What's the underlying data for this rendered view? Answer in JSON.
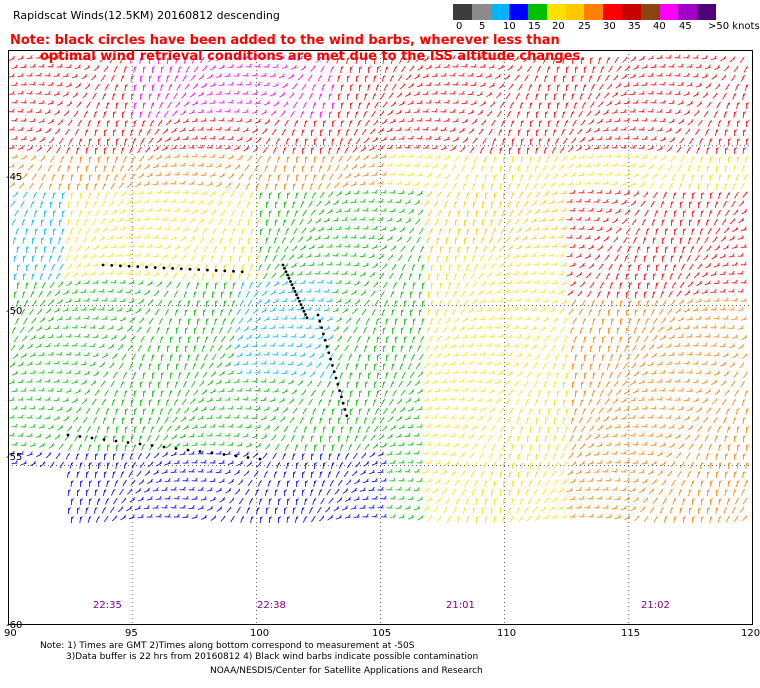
{
  "title": "Rapidscat Winds(12.5KM) 20160812 descending",
  "note": {
    "line1": "Note: black circles have been added to the wind barbs, wherever less than",
    "line2": "optimal wind retrieval conditions are met due to the ISS altitude changes."
  },
  "legend": {
    "labels": [
      "0",
      "5",
      "10",
      "15",
      "20",
      "25",
      "30",
      "35",
      "40",
      "45",
      ">50 knots"
    ],
    "colors": [
      "#3c3c3c",
      "#8a8a8a",
      "#00b4ff",
      "#0000ff",
      "#00c000",
      "#ffe000",
      "#ffc800",
      "#ff8000",
      "#ff0000",
      "#c80000",
      "#8b4513",
      "#ff00ff",
      "#a000c8",
      "#500078"
    ]
  },
  "axes": {
    "lon_labels": [
      "90",
      "95",
      "100",
      "105",
      "110",
      "115",
      "120"
    ],
    "lat_labels": [
      "-45",
      "-50",
      "-55",
      "-60"
    ]
  },
  "times": [
    "22:35",
    "22:38",
    "21:01",
    "21:02"
  ],
  "footer": {
    "line1": "Note: 1) Times are GMT 2)Times along bottom correspond to measurement at -50S",
    "line2": "3)Data buffer is 22 hrs from 20160812 4) Black wind barbs indicate possible contamination",
    "line3": "NOAA/NESDIS/Center for Satellite Applications and Research"
  }
}
